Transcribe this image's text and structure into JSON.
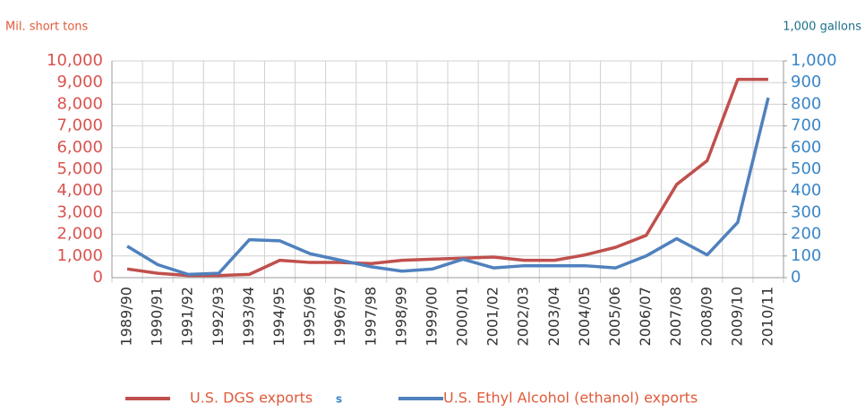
{
  "chart_data": {
    "type": "line",
    "y_label": "Mil. short tons",
    "y2_label": "1,000 gallons",
    "categories": [
      "1989/90",
      "1990/91",
      "1991/92",
      "1992/93",
      "1993/94",
      "1994/95",
      "1995/96",
      "1996/97",
      "1997/98",
      "1998/99",
      "1999/00",
      "2000/01",
      "2001/02",
      "2002/03",
      "2003/04",
      "2004/05",
      "2005/06",
      "2006/07",
      "2007/08",
      "2008/09",
      "2009/10",
      "2010/11"
    ],
    "series": [
      {
        "name": "U.S. DGS exports",
        "color": "#c0504d",
        "values": [
          400,
          200,
          100,
          100,
          150,
          800,
          700,
          700,
          650,
          800,
          850,
          900,
          950,
          800,
          800,
          1050,
          1400,
          1950,
          4300,
          5400,
          9150,
          9150
        ]
      },
      {
        "name": "U.S. Ethyl Alcohol (ethanol) exports",
        "color": "#4f81bd",
        "axis": "y2",
        "values": [
          145,
          60,
          15,
          20,
          175,
          170,
          110,
          80,
          50,
          30,
          40,
          85,
          45,
          55,
          55,
          55,
          45,
          100,
          180,
          105,
          255,
          830
        ]
      }
    ],
    "legend_note": "s",
    "ylim": [
      0,
      10000
    ],
    "yticks": [
      0,
      {
        "value": 1000,
        "label": "1,000"
      },
      {
        "value": 2000,
        "label": "2,000"
      },
      {
        "value": 3000,
        "label": "3,000"
      },
      {
        "value": 4000,
        "label": "4,000"
      },
      {
        "value": 5000,
        "label": "5,000"
      },
      {
        "value": 6000,
        "label": "6,000"
      },
      {
        "value": 7000,
        "label": "7,000"
      },
      {
        "value": 8000,
        "label": "8,000"
      },
      {
        "value": 9000,
        "label": "9,000"
      },
      {
        "value": 10000,
        "label": "10,000"
      }
    ],
    "y2lim": [
      0,
      1000
    ],
    "y2ticks": [
      0,
      100,
      200,
      300,
      400,
      500,
      600,
      700,
      800,
      900,
      {
        "value": 1000,
        "label": "1,000"
      }
    ],
    "grid": true
  }
}
